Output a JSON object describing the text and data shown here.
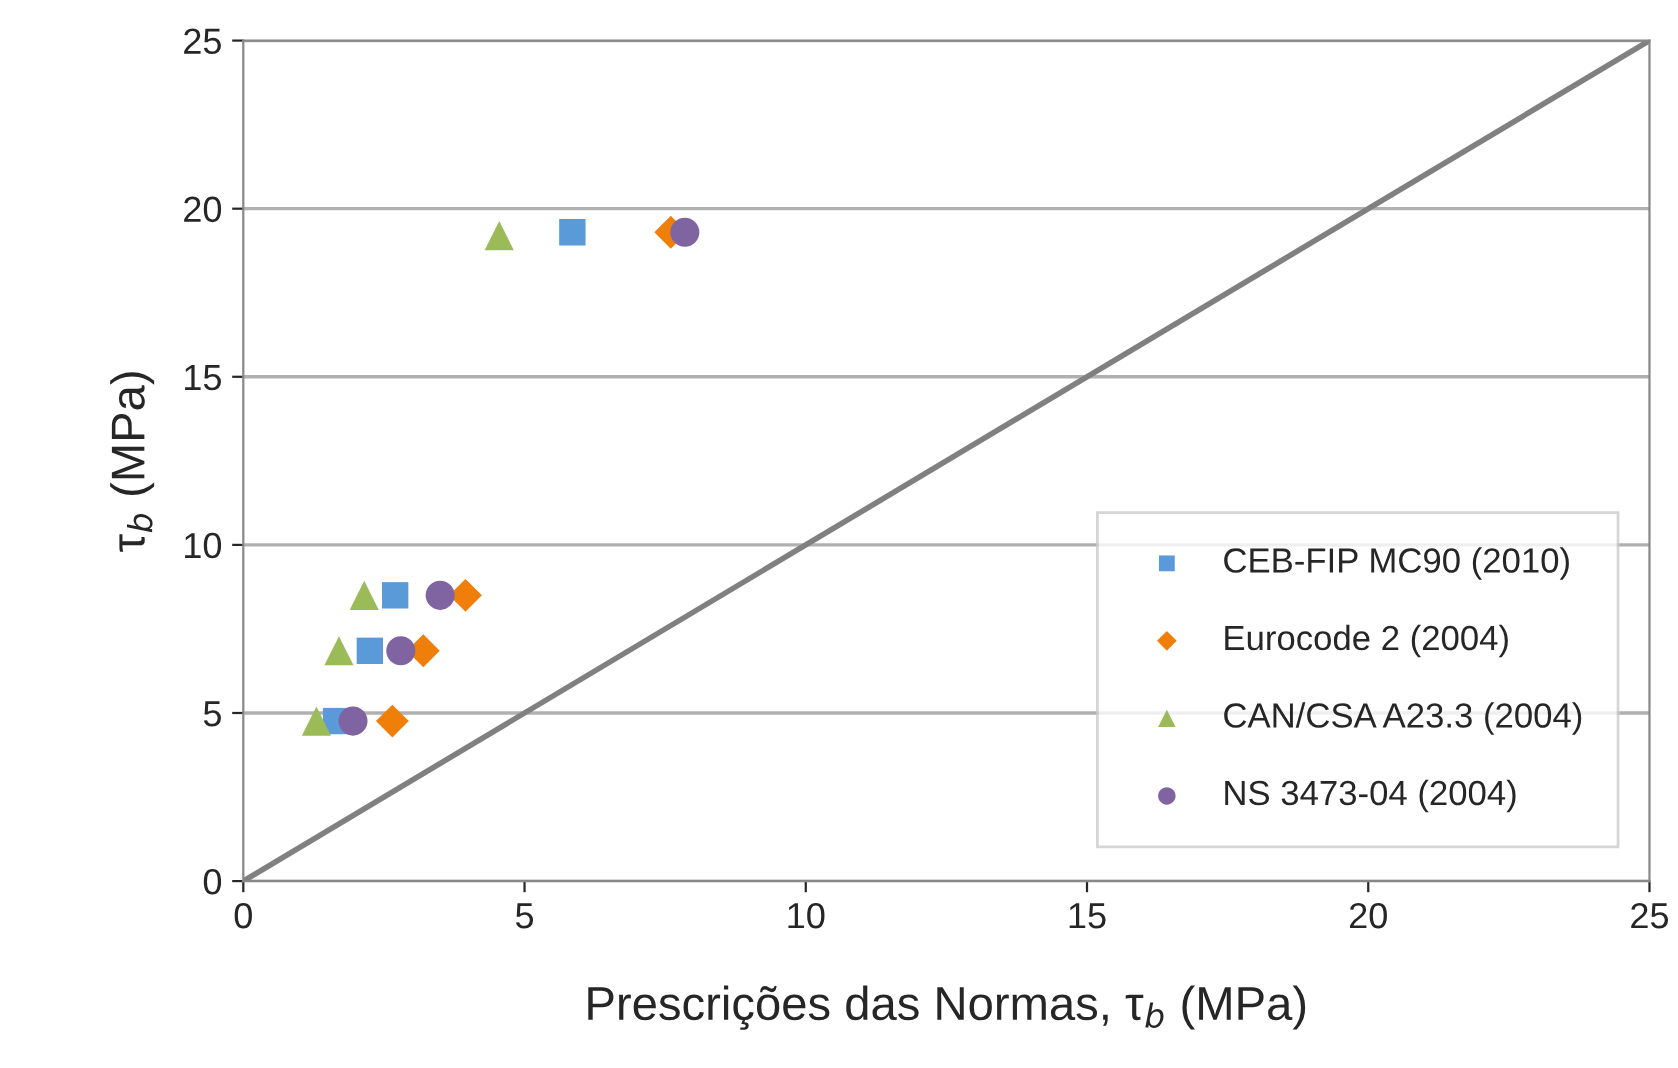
{
  "chart_data": {
    "type": "scatter",
    "xlabel": "Prescrições das Normas, τ$_{b}$ (MPa)",
    "ylabel": "τ$_{b}$ (MPa)",
    "xlim": [
      0,
      25
    ],
    "ylim": [
      0,
      25
    ],
    "xticks": [
      0,
      5,
      10,
      15,
      20,
      25
    ],
    "yticks": [
      0,
      5,
      10,
      15,
      20,
      25
    ],
    "grid": "y",
    "legend": "bottom right",
    "series": [
      {
        "name": "CEB-FIP MC90 (2010)",
        "color": "#5a9ad8",
        "marker": "square",
        "x": [
          1.65,
          2.25,
          2.7,
          5.85
        ],
        "values": [
          4.76,
          6.85,
          8.5,
          19.3
        ]
      },
      {
        "name": "Eurocode 2 (2004)",
        "color": "#f07f09",
        "marker": "diamond",
        "x": [
          2.65,
          3.2,
          3.95,
          7.6
        ],
        "values": [
          4.76,
          6.85,
          8.5,
          19.3
        ]
      },
      {
        "name": "CAN/CSA A23.3 (2004)",
        "color": "#9bbb59",
        "marker": "triangle",
        "x": [
          1.3,
          1.7,
          2.15,
          4.55
        ],
        "values": [
          4.76,
          6.85,
          8.5,
          19.2
        ]
      },
      {
        "name": "NS 3473-04 (2004)",
        "color": "#8064a2",
        "marker": "circle",
        "x": [
          1.95,
          2.8,
          3.5,
          7.85
        ],
        "values": [
          4.76,
          6.85,
          8.5,
          19.3
        ]
      },
      {
        "type": "line",
        "color": "#808080",
        "marker": "none",
        "x": [
          0,
          25
        ],
        "values": [
          0,
          25
        ]
      }
    ]
  }
}
